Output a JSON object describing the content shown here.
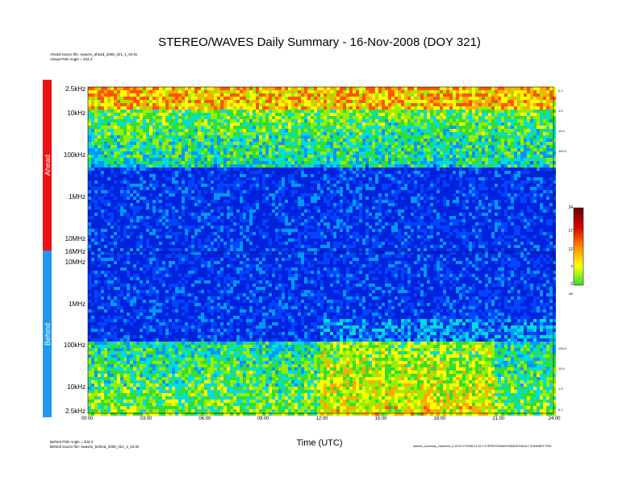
{
  "title": "STEREO/WAVES Daily Summary - 16-Nov-2008 (DOY 321)",
  "header_notes": {
    "ahead_source": "Ahead source file: swaves_ahead_2008_321_1_04.lin",
    "ahead_pse": "Ahead PSE Angle = 333.3"
  },
  "footer_notes": {
    "behind_pse": "Behind PSE Angle = 333.3",
    "behind_source": "Behind source file: swaves_behind_2008_321_1_04.lin",
    "generator": "swaves_summary_2dcomms_6 15:33 07/2008 01:15.3 STEREO/SWAVES/WAVES/DAILY SUMMARY PNG"
  },
  "side_labels": {
    "ahead": "Ahead",
    "behind": "Behind"
  },
  "xlabel": "Time (UTC)",
  "colorbar": {
    "unit": "dB",
    "ticks": [
      "24",
      "17",
      "12",
      "7",
      "2"
    ],
    "colors": [
      "#33dd33",
      "#ffff00",
      "#ff8800",
      "#dd0000",
      "#660000"
    ]
  },
  "chart_data": {
    "type": "heatmap",
    "title": "STEREO/WAVES Daily Summary - 16-Nov-2008 (DOY 321)",
    "xlabel": "Time (UTC)",
    "ylabel": "",
    "xlim": [
      0,
      24
    ],
    "x_ticks": [
      "00:00",
      "03:00",
      "06:00",
      "09:00",
      "12:00",
      "15:00",
      "18:00",
      "21:00",
      "24:00"
    ],
    "panels": [
      {
        "name": "Ahead",
        "y_scale": "log",
        "y_ticks": [
          "2.5kHz",
          "10kHz",
          "100kHz",
          "1MHz",
          "10MHz",
          "16MHz"
        ],
        "right_ticks": [
          "0.1",
          "1.0",
          "10.0",
          "100.0"
        ]
      },
      {
        "name": "Behind",
        "y_scale": "log",
        "y_ticks": [
          "10MHz",
          "1MHz",
          "100kHz",
          "10kHz",
          "2.5kHz"
        ],
        "right_ticks": [
          "100.0",
          "10.0",
          "1.0",
          "0.1"
        ]
      }
    ],
    "colorbar": {
      "unit": "dB",
      "range": [
        2,
        24
      ],
      "ticks": [
        24,
        17,
        12,
        7,
        2
      ]
    }
  }
}
